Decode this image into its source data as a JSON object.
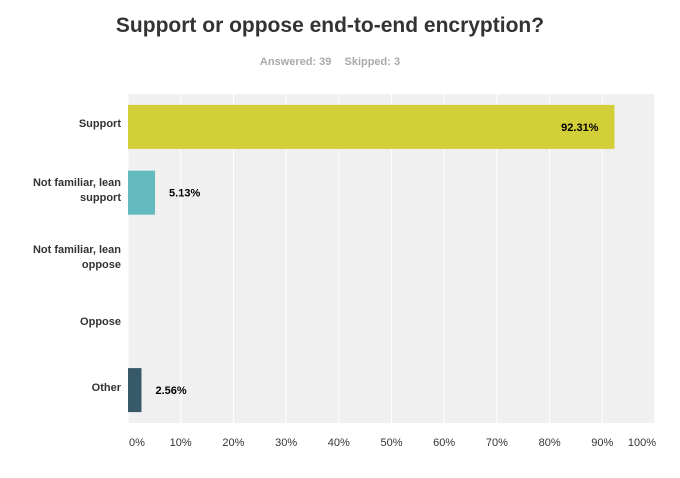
{
  "title": "Support or oppose end-to-end encryption?",
  "answered": "Answered: 39",
  "skipped": "Skipped: 3",
  "chart_data": {
    "type": "bar",
    "orientation": "horizontal",
    "title": "Support or oppose end-to-end encryption?",
    "categories": [
      "Support",
      "Not familiar, lean support",
      "Not familiar, lean oppose",
      "Oppose",
      "Other"
    ],
    "values": [
      92.31,
      5.13,
      0,
      0,
      2.56
    ],
    "value_labels": [
      "92.31%",
      "5.13%",
      "",
      "",
      "2.56%"
    ],
    "colors": [
      "#d3cf38",
      "#63bbc0",
      "#6c7c85",
      "#9a9a9a",
      "#38596a"
    ],
    "xlim": [
      0,
      100
    ],
    "xticks": [
      "0%",
      "10%",
      "20%",
      "30%",
      "40%",
      "50%",
      "60%",
      "70%",
      "80%",
      "90%",
      "100%"
    ],
    "grid": true
  }
}
